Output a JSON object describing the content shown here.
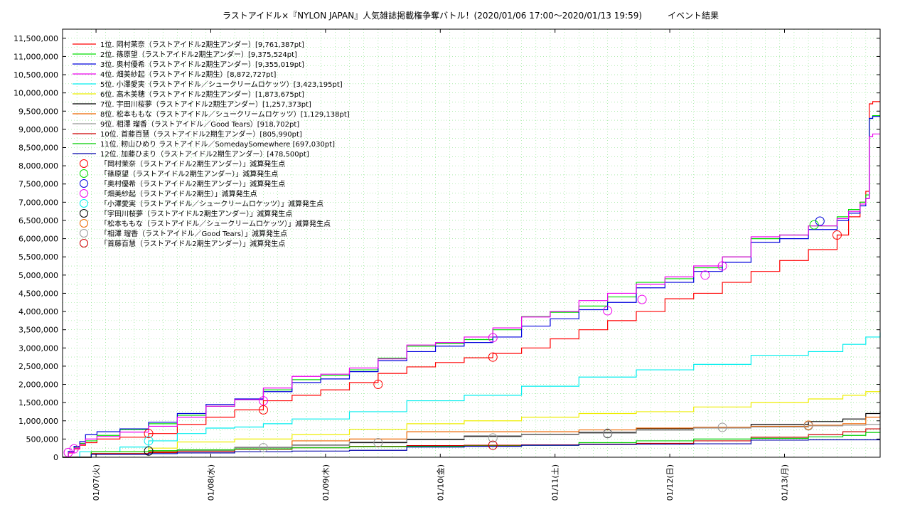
{
  "chart_data": {
    "type": "line",
    "title": "ラストアイドル×『NYLON JAPAN』人気雑誌掲載権争奪バトル！(2020/01/06 17:00〜2020/01/13 19:59)　　　イベント結果",
    "xlabel": "",
    "ylabel": "",
    "grid": true,
    "legend_placement": "top-left",
    "x_unit": "days after 2020/01/06 17:00",
    "xlim": [
      0,
      7.125
    ],
    "ylim": [
      0,
      11750000
    ],
    "yticks": [
      0,
      500000,
      1000000,
      1500000,
      2000000,
      2500000,
      3000000,
      3500000,
      4000000,
      4500000,
      5000000,
      5500000,
      6000000,
      6500000,
      7000000,
      7500000,
      8000000,
      8500000,
      9000000,
      9500000,
      10000000,
      10500000,
      11000000,
      11500000
    ],
    "ytick_labels": [
      "0",
      "500,000",
      "1,000,000",
      "1,500,000",
      "2,000,000",
      "2,500,000",
      "3,000,000",
      "3,500,000",
      "4,000,000",
      "4,500,000",
      "5,000,000",
      "5,500,000",
      "6,000,000",
      "6,500,000",
      "7,000,000",
      "7,500,000",
      "8,000,000",
      "8,500,000",
      "9,000,000",
      "9,500,000",
      "10,000,000",
      "10,500,000",
      "11,000,000",
      "11,500,000"
    ],
    "xticks": [
      0.2917,
      1.2917,
      2.2917,
      3.2917,
      4.2917,
      5.2917,
      6.2917
    ],
    "xtick_labels": [
      "01/07(火)",
      "01/08(水)",
      "01/09(木)",
      "01/10(金)",
      "01/11(土)",
      "01/12(日)",
      "01/13(月)"
    ],
    "series": [
      {
        "name": "1位. 岡村茉奈（ラストアイドル2期生アンダー）[9,761,387pt]",
        "color": "#ff0000",
        "x": [
          0,
          0.05,
          0.1,
          0.15,
          0.2,
          0.3,
          0.5,
          0.75,
          1.0,
          1.25,
          1.5,
          1.75,
          2.0,
          2.25,
          2.5,
          2.75,
          3.0,
          3.25,
          3.5,
          3.75,
          4.0,
          4.25,
          4.5,
          4.75,
          5.0,
          5.25,
          5.5,
          5.75,
          6.0,
          6.25,
          6.5,
          6.75,
          6.85,
          6.95,
          7.0,
          7.03,
          7.06,
          7.125
        ],
        "values": [
          0,
          120000,
          230000,
          330000,
          400000,
          500000,
          550000,
          650000,
          900000,
          1100000,
          1300000,
          1550000,
          1700000,
          1850000,
          2050000,
          2300000,
          2480000,
          2600000,
          2730000,
          2850000,
          3000000,
          3250000,
          3500000,
          3750000,
          4000000,
          4350000,
          4500000,
          4800000,
          5100000,
          5400000,
          5700000,
          6100000,
          6600000,
          7000000,
          7300000,
          9700000,
          9761387,
          9761387
        ]
      },
      {
        "name": "2位. 篠原望（ラストアイドル2期生アンダー）[9,375,524pt]",
        "color": "#00dd00",
        "x": [
          0,
          0.05,
          0.1,
          0.15,
          0.2,
          0.3,
          0.5,
          0.75,
          1.0,
          1.25,
          1.5,
          1.75,
          2.0,
          2.25,
          2.5,
          2.75,
          3.0,
          3.25,
          3.5,
          3.75,
          4.0,
          4.25,
          4.5,
          4.75,
          5.0,
          5.25,
          5.5,
          5.75,
          6.0,
          6.25,
          6.5,
          6.75,
          6.85,
          6.95,
          7.0,
          7.03,
          7.06,
          7.125
        ],
        "values": [
          0,
          150000,
          270000,
          380000,
          450000,
          600000,
          760000,
          920000,
          1150000,
          1400000,
          1580000,
          1850000,
          2130000,
          2250000,
          2400000,
          2720000,
          3050000,
          3120000,
          3230000,
          3500000,
          3860000,
          3980000,
          4150000,
          4400000,
          4800000,
          4900000,
          5200000,
          5500000,
          6000000,
          6100000,
          6350000,
          6600000,
          6800000,
          7000000,
          7200000,
          9300000,
          9375524,
          9375524
        ]
      },
      {
        "name": "3位. 奥村優希（ラストアイドル2期生アンダー）[9,355,019pt]",
        "color": "#0000dd",
        "x": [
          0,
          0.05,
          0.1,
          0.15,
          0.2,
          0.3,
          0.5,
          0.75,
          1.0,
          1.25,
          1.5,
          1.75,
          2.0,
          2.25,
          2.5,
          2.75,
          3.0,
          3.25,
          3.5,
          3.75,
          4.0,
          4.25,
          4.5,
          4.75,
          5.0,
          5.25,
          5.5,
          5.75,
          6.0,
          6.25,
          6.5,
          6.75,
          6.85,
          6.95,
          7.0,
          7.03,
          7.06,
          7.125
        ],
        "values": [
          0,
          160000,
          300000,
          430000,
          620000,
          700000,
          780000,
          960000,
          1200000,
          1450000,
          1600000,
          1800000,
          2050000,
          2150000,
          2350000,
          2650000,
          2900000,
          3050000,
          3150000,
          3300000,
          3600000,
          3800000,
          4050000,
          4250000,
          4650000,
          4800000,
          5100000,
          5350000,
          5900000,
          6000000,
          6250000,
          6500000,
          6700000,
          6900000,
          7100000,
          9300000,
          9355019,
          9355019
        ]
      },
      {
        "name": "4位. 畑美紗起（ラストアイドル2期生）[8,872,727pt]",
        "color": "#ee00ee",
        "x": [
          0,
          0.05,
          0.1,
          0.15,
          0.2,
          0.3,
          0.5,
          0.75,
          1.0,
          1.25,
          1.5,
          1.75,
          2.0,
          2.25,
          2.5,
          2.75,
          3.0,
          3.25,
          3.5,
          3.75,
          4.0,
          4.25,
          4.5,
          4.75,
          5.0,
          5.25,
          5.5,
          5.75,
          6.0,
          6.25,
          6.5,
          6.75,
          6.85,
          6.95,
          7.0,
          7.03,
          7.06,
          7.125
        ],
        "values": [
          0,
          130000,
          250000,
          360000,
          500000,
          570000,
          690000,
          850000,
          1100000,
          1400000,
          1580000,
          1900000,
          2220000,
          2280000,
          2450000,
          2700000,
          3080000,
          3150000,
          3300000,
          3550000,
          3850000,
          4000000,
          4300000,
          4500000,
          4750000,
          4950000,
          5250000,
          5500000,
          6050000,
          6100000,
          6350000,
          6550000,
          6750000,
          6950000,
          7100000,
          8800000,
          8872727,
          8872727
        ]
      },
      {
        "name": "5位. 小澤愛実（ラストアイドル／シュークリームロケッツ）[3,423,195pt]",
        "color": "#00eeee",
        "x": [
          0,
          0.15,
          0.5,
          0.75,
          1.0,
          1.25,
          1.5,
          1.75,
          2.0,
          2.5,
          3.0,
          3.5,
          4.0,
          4.5,
          5.0,
          5.5,
          6.0,
          6.5,
          6.8,
          7.0,
          7.125
        ],
        "values": [
          0,
          150000,
          280000,
          450000,
          650000,
          800000,
          830000,
          920000,
          1050000,
          1250000,
          1550000,
          1700000,
          1950000,
          2200000,
          2400000,
          2550000,
          2800000,
          2900000,
          3100000,
          3300000,
          3423195
        ]
      },
      {
        "name": "6位. 高木美穂（ラストアイドル2期生アンダー）[1,873,675pt]",
        "color": "#eeee00",
        "x": [
          0,
          0.25,
          0.75,
          1.0,
          1.5,
          2.0,
          2.5,
          3.0,
          3.5,
          4.0,
          4.5,
          5.0,
          5.5,
          6.0,
          6.5,
          6.8,
          7.0,
          7.125
        ],
        "values": [
          0,
          150000,
          250000,
          420000,
          500000,
          620000,
          770000,
          920000,
          1000000,
          1100000,
          1200000,
          1250000,
          1380000,
          1500000,
          1600000,
          1700000,
          1800000,
          1873675
        ]
      },
      {
        "name": "7位. 宇田川桜夢（ラストアイドル2期生アンダー）[1,257,373pt]",
        "color": "#000000",
        "x": [
          0,
          0.25,
          0.75,
          1.0,
          1.5,
          2.0,
          2.5,
          3.0,
          3.5,
          4.0,
          4.5,
          5.0,
          5.5,
          6.0,
          6.5,
          6.8,
          7.0,
          7.125
        ],
        "values": [
          0,
          80000,
          150000,
          200000,
          270000,
          330000,
          400000,
          480000,
          580000,
          630000,
          680000,
          780000,
          820000,
          900000,
          980000,
          1050000,
          1200000,
          1257373
        ]
      },
      {
        "name": "8位. 松本ももな（ラストアイドル／シュークリームロケッツ）[1,129,138pt]",
        "color": "#ee6600",
        "x": [
          0,
          0.25,
          0.75,
          1.0,
          1.5,
          2.0,
          2.5,
          3.0,
          3.5,
          4.0,
          4.5,
          5.0,
          5.5,
          6.0,
          6.5,
          6.8,
          7.0,
          7.125
        ],
        "values": [
          0,
          100000,
          150000,
          200000,
          220000,
          450000,
          500000,
          700000,
          700000,
          700000,
          750000,
          800000,
          820000,
          850000,
          880000,
          920000,
          1100000,
          1129138
        ]
      },
      {
        "name": "9位. 相澤 瑠香（ラストアイドル／Good Tears）[918,702pt]",
        "color": "#999999",
        "x": [
          0,
          0.25,
          0.75,
          1.0,
          1.5,
          2.0,
          2.5,
          3.0,
          3.5,
          4.0,
          4.5,
          5.0,
          5.5,
          6.0,
          6.5,
          6.8,
          7.0,
          7.125
        ],
        "values": [
          0,
          80000,
          130000,
          180000,
          260000,
          320000,
          420000,
          500000,
          560000,
          620000,
          660000,
          740000,
          800000,
          830000,
          860000,
          880000,
          900000,
          918702
        ]
      },
      {
        "name": "10位. 首藤百慧（ラストアイドル2期生アンダー）[805,990pt]",
        "color": "#cc0000",
        "x": [
          0,
          0.25,
          0.75,
          1.0,
          1.5,
          2.0,
          2.5,
          3.0,
          3.5,
          4.0,
          4.5,
          5.0,
          5.5,
          6.0,
          6.5,
          6.8,
          7.0,
          7.125
        ],
        "values": [
          0,
          100000,
          130000,
          160000,
          220000,
          260000,
          300000,
          320000,
          330000,
          340000,
          360000,
          380000,
          450000,
          550000,
          620000,
          700000,
          780000,
          805990
        ]
      },
      {
        "name": "11位. 籾山ひめり ラストアイドル／SomedaySomewhere [697,030pt]",
        "color": "#00cc00",
        "x": [
          0,
          0.25,
          0.75,
          1.0,
          1.5,
          2.0,
          2.5,
          3.0,
          3.5,
          4.0,
          4.5,
          5.0,
          5.5,
          6.0,
          6.5,
          6.8,
          7.0,
          7.125
        ],
        "values": [
          0,
          150000,
          180000,
          200000,
          230000,
          260000,
          290000,
          300000,
          310000,
          330000,
          400000,
          450000,
          500000,
          520000,
          560000,
          600000,
          680000,
          697030
        ]
      },
      {
        "name": "12位. 加藤ひまり（ラストアイドル2期生アンダー）[478,500pt]",
        "color": "#0000aa",
        "x": [
          0,
          0.25,
          0.75,
          1.0,
          1.5,
          2.0,
          2.5,
          3.0,
          3.5,
          4.0,
          4.5,
          5.0,
          5.5,
          6.0,
          6.5,
          6.8,
          7.0,
          7.125
        ],
        "values": [
          0,
          80000,
          100000,
          120000,
          150000,
          170000,
          190000,
          280000,
          300000,
          330000,
          350000,
          360000,
          370000,
          470000,
          478500,
          478500,
          478500,
          478500
        ]
      }
    ],
    "markers": [
      {
        "name": "「岡村茉奈（ラストアイドル2期生アンダー）」減算発生点",
        "color": "#ff0000",
        "points": [
          [
            0.75,
            650000
          ],
          [
            1.75,
            1300000
          ],
          [
            2.75,
            2000000
          ],
          [
            3.75,
            2750000
          ],
          [
            6.75,
            6100000
          ]
        ]
      },
      {
        "name": "「篠原望（ラストアイドル2期生アンダー）」減算発生点",
        "color": "#00dd00",
        "points": [
          [
            6.55,
            6380000
          ]
        ]
      },
      {
        "name": "「奥村優希（ラストアイドル2期生アンダー）」減算発生点",
        "color": "#0000dd",
        "points": [
          [
            6.6,
            6480000
          ]
        ]
      },
      {
        "name": "「畑美紗起（ラストアイドル2期生）」減算発生点",
        "color": "#ee00ee",
        "points": [
          [
            0.05,
            130000
          ],
          [
            0.1,
            230000
          ],
          [
            1.75,
            1550000
          ],
          [
            3.75,
            3280000
          ],
          [
            4.75,
            4020000
          ],
          [
            5.05,
            4330000
          ],
          [
            5.6,
            5000000
          ],
          [
            5.75,
            5250000
          ]
        ]
      },
      {
        "name": "「小澤愛実（ラストアイドル／シュークリームロケッツ）」減算発生点",
        "color": "#00eeee",
        "points": [
          [
            0.75,
            450000
          ]
        ]
      },
      {
        "name": "「宇田川桜夢（ラストアイドル2期生アンダー）」減算発生点",
        "color": "#000000",
        "points": [
          [
            0.75,
            170000
          ],
          [
            4.75,
            650000
          ]
        ]
      },
      {
        "name": "「松本ももな（ラストアイドル／シュークリームロケッツ）」減算発生点",
        "color": "#ee6600",
        "points": [
          [
            6.5,
            880000
          ]
        ]
      },
      {
        "name": "「相澤 瑠香（ラストアイドル／Good Tears）」減算発生点",
        "color": "#999999",
        "points": [
          [
            1.75,
            260000
          ],
          [
            2.75,
            400000
          ],
          [
            3.75,
            530000
          ],
          [
            4.75,
            660000
          ],
          [
            5.75,
            820000
          ],
          [
            6.5,
            860000
          ]
        ]
      },
      {
        "name": "「首藤百慧（ラストアイドル2期生アンダー）」減算発生点",
        "color": "#cc0000",
        "points": [
          [
            3.75,
            330000
          ]
        ]
      }
    ]
  }
}
